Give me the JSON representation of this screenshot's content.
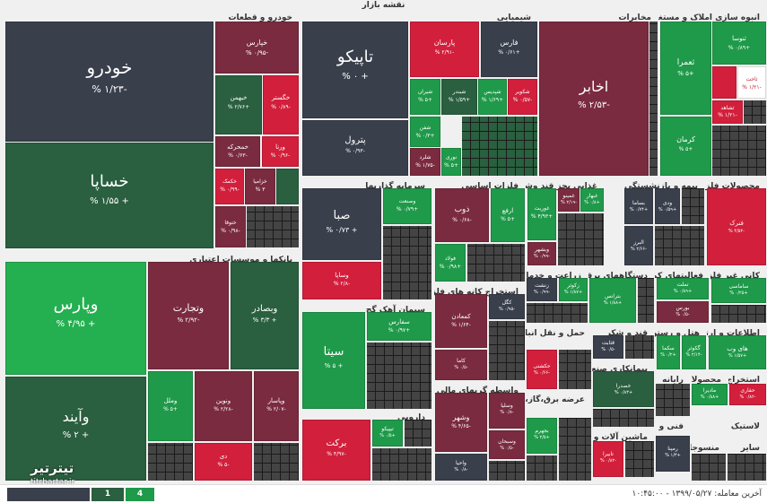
{
  "page_title": "نقشه بازار",
  "colors": {
    "dark": "#3a3f4c",
    "red": "#d21f3c",
    "darkred": "#7a2b3f",
    "green": "#1f9a4a",
    "darkgreen": "#2a5f3f",
    "lightgreen": "#24b050"
  },
  "sections": {
    "khodro": "خودرو و قطعات",
    "shimiyaei": "شیمیایی",
    "mokhaberat": "مخابرات",
    "anbooh": "انبوه سازی املاک و مستغلات",
    "bankha": "بانکها و موسسات اعتباری",
    "sarmaye": "سرمایه گذاریها",
    "felezat": "فلزات اساسی",
    "ghazaei": "غذایی بجز قند وشکر",
    "bimeh": "بیمه و بازنشستگی",
    "mahsoolat_felezi": "محصولات فلزی",
    "siman": "سیمان آهک گچ",
    "estekhraj_kani": "استخراج کانه های فلزی",
    "zeraat": "زراعت و خدمات",
    "dastgah_barghi": "دستگاههای برقی",
    "faaliat_komaki": "فعالیتهای کمکی به",
    "kani_gheir_felezi": "کانی غیر فلزی",
    "ghand": "قند و شکر",
    "hotel": "هتل و رستوران",
    "ettelaat": "اطلاعات و ارتباطات",
    "haml": "حمل و نقل انبارداری و",
    "vaseteh": "واسطه گریهای مالی و پولی",
    "daroei": "دارویی",
    "pimankari": "پیمانکاری صنعتی",
    "rayaneh": "رایانه",
    "estekhraj": "استخراج",
    "mahsoolat": "محصولات",
    "lastik": "لاستیک",
    "arzeh_bargh": "عرضه برق،گاز،بخار و",
    "fanni": "فنی و",
    "mashin": "ماشین آلات و",
    "monsojat": "منسوجات",
    "sayer": "سایر"
  },
  "tiles": {
    "khodro": {
      "name": "خودرو",
      "pct": "-۱/۲۳ %"
    },
    "khasapa": {
      "name": "خساپا",
      "pct": "+ ۱/۵۵ %"
    },
    "khepars": {
      "name": "خپارس",
      "pct": "-۰/۹۵ %"
    },
    "khebahman": {
      "name": "خبهمن",
      "pct": "+۲/۷۶ %"
    },
    "khegostar": {
      "name": "خگستر",
      "pct": "-۰/۸۹ %"
    },
    "khamhereh": {
      "name": "خمحرکه",
      "pct": "-۰/۶۳ %"
    },
    "virana": {
      "name": "ورنا",
      "pct": "-۰/۹۶ %"
    },
    "khakomak": {
      "name": "خکمک",
      "pct": "-۰/۹۹ %"
    },
    "khezamia": {
      "name": "خزامیا",
      "pct": "۳ %"
    },
    "khaltoga": {
      "name": "ختوقا",
      "pct": "-۰/۹۸ %"
    },
    "tapiko": {
      "name": "تاپیکو",
      "pct": "+ ۰ %"
    },
    "petrol": {
      "name": "پترول",
      "pct": "-۰/۹۳ %"
    },
    "parsan": {
      "name": "پارسان",
      "pct": "-۲/۹۱ %"
    },
    "fars": {
      "name": "فارس",
      "pct": "+۰/۶۱ %"
    },
    "shiran": {
      "name": "شیران",
      "pct": "+۵ %"
    },
    "shebandar": {
      "name": "شبندر",
      "pct": "+۱/۵۹ %"
    },
    "shekavir": {
      "name": "شکویر",
      "pct": "-۰/۵۷ %"
    },
    "shepdis": {
      "name": "شپدیس",
      "pct": "+۱/۶۹ %"
    },
    "shefen": {
      "name": "شفن",
      "pct": "+۰/۳ %"
    },
    "sharad": {
      "name": "شلرد",
      "pct": "-۱/۷۵ %"
    },
    "nouri": {
      "name": "نوری",
      "pct": "+۵ %"
    },
    "akhaber": {
      "name": "اخابر",
      "pct": "-۲/۵۳ %"
    },
    "souna": {
      "name": "ثنوسا",
      "pct": "+۰/۸۹ %"
    },
    "semara": {
      "name": "ثعمرا",
      "pct": "+۵ %"
    },
    "setak": {
      "name": "ثاخت",
      "pct": "-۱/۲۱ %"
    },
    "sashahed": {
      "name": "ثشاهد",
      "pct": "-۱/۲۱ %"
    },
    "kerman": {
      "name": "کرمان",
      "pct": "+۵ %"
    },
    "vepars": {
      "name": "وپارس",
      "pct": "+ ۴/۹۵ %"
    },
    "vatejarat": {
      "name": "وتجارت",
      "pct": "-۲/۹۲ %"
    },
    "vebsader": {
      "name": "وبصادر",
      "pct": "+ ۳/۳ %"
    },
    "vayand": {
      "name": "وآیند",
      "pct": "+ ۲ %"
    },
    "vanovin": {
      "name": "ونوین",
      "pct": "-۲/۲۸ %"
    },
    "vamelal": {
      "name": "وملل",
      "pct": "+۵ %"
    },
    "dey": {
      "name": "دی",
      "pct": "-۵ %"
    },
    "vepasar": {
      "name": "وپاسار",
      "pct": "-۲/۰۷ %"
    },
    "saba": {
      "name": "صبا",
      "pct": "+ ۰/۷۳ %"
    },
    "vesanat": {
      "name": "وصنعت",
      "pct": "+۰/۷۹ %"
    },
    "vesapa": {
      "name": "وساپا",
      "pct": "-۲/۸ %"
    },
    "zob": {
      "name": "ذوب",
      "pct": "-۰/۶۸ %"
    },
    "arfa": {
      "name": "ارفع",
      "pct": "+۵ %"
    },
    "fulad": {
      "name": "فولاد",
      "pct": "+۰/۹۸ %"
    },
    "ghoorit": {
      "name": "غوریت",
      "pct": "+۴/۹۳ %"
    },
    "ghamina": {
      "name": "غمینو",
      "pct": "-۲/۱۹ %"
    },
    "ghebhar": {
      "name": "غبهار",
      "pct": "+۰/۸ %"
    },
    "vebeshhar": {
      "name": "وبشهر",
      "pct": "-۰/۹۹ %"
    },
    "vedi": {
      "name": "ودی",
      "pct": "+۰/۵۹ %"
    },
    "basama": {
      "name": "بساما",
      "pct": "+۰/۷۴ %"
    },
    "albor": {
      "name": "البرز",
      "pct": "-۲/۶۶ %"
    },
    "fanak": {
      "name": "فنرک",
      "pct": "-۴/۵۲ %"
    },
    "sita": {
      "name": "سیتا",
      "pct": "+ ۵ %"
    },
    "sefars": {
      "name": "سفارس",
      "pct": "+۰/۹۷ %"
    },
    "kegol": {
      "name": "کگل",
      "pct": "-۰/۹۵ %"
    },
    "kamadan": {
      "name": "کمعادن",
      "pct": "-۱/۶۴ %"
    },
    "kama": {
      "name": "کاما",
      "pct": "-۰/۵ %"
    },
    "zenesh": {
      "name": "زنشت",
      "pct": "-۰/۹۹ %"
    },
    "zekoter": {
      "name": "زکوثر",
      "pct": "+۱/۸۷ %"
    },
    "bataris": {
      "name": "بترانس",
      "pct": "+۱/۸۸ %"
    },
    "tamet": {
      "name": "تملت",
      "pct": "+۰/۸۹ %"
    },
    "boors": {
      "name": "بورس",
      "pct": "-۰/۵ %"
    },
    "salami": {
      "name": "ساماسی",
      "pct": "+۰/۲۵ %"
    },
    "gesafha": {
      "name": "قثابت",
      "pct": "-۰/۵ %"
    },
    "sekma": {
      "name": "سکما",
      "pct": "+۰/۲ %"
    },
    "kowsar": {
      "name": "گکوثر",
      "pct": "-۲/۱۴ %"
    },
    "hayweb": {
      "name": "های وب",
      "pct": "+۱/۵۷ %"
    },
    "hakshti": {
      "name": "حکشتی",
      "pct": "-۰/۶۶ %"
    },
    "khazar": {
      "name": "خصدرا",
      "pct": "+۰/۸۳ %"
    },
    "vashahr": {
      "name": "وشهر",
      "pct": "-۴/۶۵ %"
    },
    "vesalia": {
      "name": "وسلیا",
      "pct": "-۰/۸ %"
    },
    "vahana": {
      "name": "واحیا",
      "pct": "-۰/۸ %"
    },
    "vesiaban": {
      "name": "وسبحان",
      "pct": "-۰/۵ %"
    },
    "barkat": {
      "name": "برکت",
      "pct": "-۴/۹۷ %"
    },
    "tipiko": {
      "name": "تیپیکو",
      "pct": "+۰/۵ %"
    },
    "bejhram": {
      "name": "بجهرم",
      "pct": "+۲/۵ %"
    },
    "tabira": {
      "name": "تابیرا",
      "pct": "-۰/۸۲ %"
    },
    "remapna": {
      "name": "رمپنا",
      "pct": "+۱/۳ %"
    },
    "hafari": {
      "name": "حفاری",
      "pct": "-۰/۸۲ %"
    },
    "madira": {
      "name": "مادیرا",
      "pct": "+۰/۸۸ %"
    }
  },
  "bottom": {
    "box_green": "4",
    "box_darkgreen": "1",
    "last_trade_label": "آخرین معامله:",
    "last_trade_value": "۱۳۹۹/۰۵/۲۷ - ۱۰:۴۵:۰۰"
  },
  "logo": {
    "text": "تیترتیر",
    "site": "titrbartar.ir"
  }
}
